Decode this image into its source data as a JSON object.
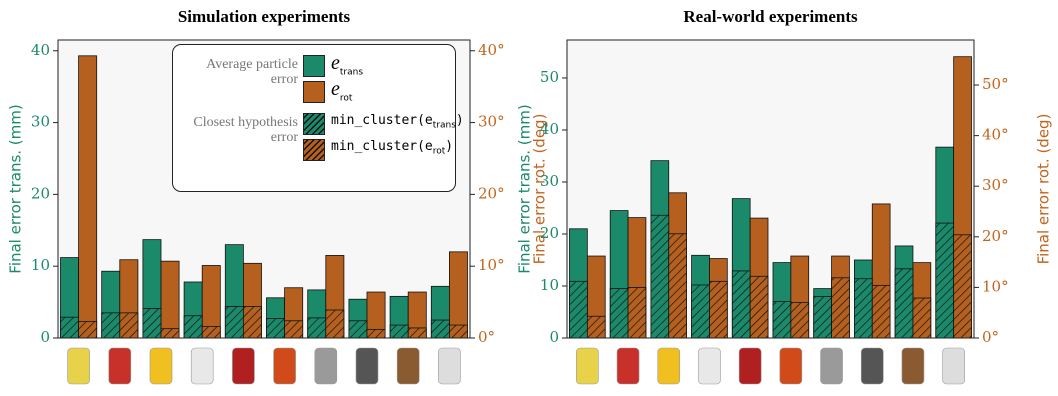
{
  "chart_data": [
    {
      "type": "bar",
      "title": "Simulation experiments",
      "ylabel": "Final error trans. (mm)",
      "y2label": "Final error rot. (deg)",
      "categories": [
        null,
        null,
        null,
        null,
        null,
        null,
        null,
        null,
        null,
        null
      ],
      "series": [
        {
          "name": "e",
          "name_sub": "trans",
          "color": "#1b8a6b",
          "values": [
            11.2,
            9.3,
            13.7,
            7.8,
            13.0,
            5.6,
            6.7,
            5.4,
            5.8,
            7.2
          ]
        },
        {
          "name": "e",
          "name_sub": "rot",
          "color": "#b5601e",
          "axis": "y2",
          "values": [
            39.3,
            10.9,
            10.7,
            10.1,
            10.4,
            7.0,
            11.5,
            6.4,
            6.4,
            12.0
          ]
        },
        {
          "name": "min_cluster(e",
          "name_sub": "trans",
          "name_end": ")",
          "color": "#1b8a6b",
          "hatch": true,
          "values": [
            2.9,
            3.5,
            4.1,
            3.1,
            4.4,
            2.7,
            2.8,
            2.4,
            1.8,
            2.5
          ]
        },
        {
          "name": "min_cluster(e",
          "name_sub": "rot",
          "name_end": ")",
          "color": "#b5601e",
          "hatch": true,
          "axis": "y2",
          "values": [
            2.3,
            3.5,
            1.3,
            1.6,
            4.4,
            2.4,
            3.9,
            1.2,
            1.4,
            1.8
          ]
        }
      ],
      "legend": "upper right",
      "legend_titles": [
        "Average particle error",
        "Closest hypothesis error"
      ],
      "ylim": [
        0,
        41.5
      ],
      "yticks": [
        0,
        10,
        20,
        30,
        40
      ],
      "y2lim": [
        0,
        41.5
      ],
      "y2ticks": [
        {
          "value": 0,
          "label": "0°"
        },
        {
          "value": 10,
          "label": "10°"
        },
        {
          "value": 20,
          "label": "20°"
        },
        {
          "value": 30,
          "label": "30°"
        },
        {
          "value": 40,
          "label": "40°"
        }
      ]
    },
    {
      "type": "bar",
      "title": "Real-world experiments",
      "ylabel": "Final error trans. (mm)",
      "y2label": "Final error rot. (deg)",
      "categories": [
        null,
        null,
        null,
        null,
        null,
        null,
        null,
        null,
        null,
        null
      ],
      "series": [
        {
          "name": "e",
          "name_sub": "trans",
          "color": "#1b8a6b",
          "values": [
            21.0,
            24.5,
            34.1,
            15.9,
            26.8,
            14.5,
            9.5,
            15.0,
            17.7,
            36.7
          ]
        },
        {
          "name": "e",
          "name_sub": "rot",
          "color": "#b5601e",
          "axis": "y2",
          "values": [
            16.2,
            23.8,
            28.7,
            15.7,
            23.7,
            16.2,
            16.2,
            26.5,
            14.9,
            55.6
          ]
        },
        {
          "name": "min_cluster(e",
          "name_sub": "trans",
          "name_end": ")",
          "color": "#1b8a6b",
          "hatch": true,
          "values": [
            10.9,
            9.5,
            23.6,
            10.2,
            12.9,
            7.0,
            8.0,
            11.4,
            13.3,
            22.1
          ]
        },
        {
          "name": "min_cluster(e",
          "name_sub": "rot",
          "name_end": ")",
          "color": "#b5601e",
          "hatch": true,
          "axis": "y2",
          "values": [
            4.3,
            10.0,
            20.6,
            11.2,
            12.2,
            7.0,
            11.9,
            10.4,
            7.9,
            20.4
          ]
        }
      ],
      "ylim": [
        0,
        57.3
      ],
      "yticks": [
        0,
        10,
        20,
        30,
        40,
        50
      ],
      "y2lim": [
        0,
        58.9
      ],
      "y2ticks": [
        {
          "value": 0,
          "label": "0°"
        },
        {
          "value": 10,
          "label": "10°"
        },
        {
          "value": 20,
          "label": "20°"
        },
        {
          "value": 30,
          "label": "30°"
        },
        {
          "value": 40,
          "label": "40°"
        },
        {
          "value": 50,
          "label": "50°"
        }
      ]
    }
  ]
}
